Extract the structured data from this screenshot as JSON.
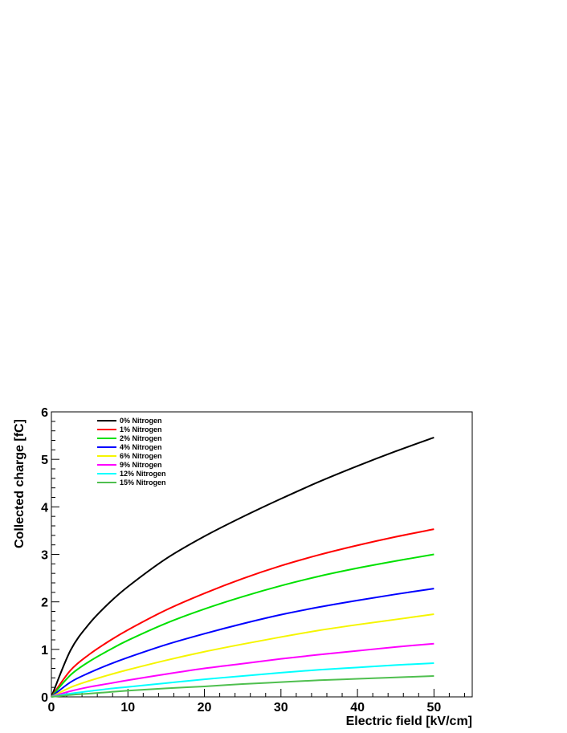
{
  "chart_data": {
    "type": "line",
    "title": "",
    "xlabel": "Electric field [kV/cm]",
    "ylabel": "Collected charge [fC]",
    "xlim": [
      0,
      55
    ],
    "ylim": [
      0,
      6
    ],
    "x_ticks": [
      0,
      10,
      20,
      30,
      40,
      50
    ],
    "y_ticks": [
      0,
      1,
      2,
      3,
      4,
      5,
      6
    ],
    "grid": false,
    "legend_position": "top-left",
    "x": [
      0,
      2.5,
      5,
      7.5,
      10,
      15,
      20,
      25,
      30,
      35,
      40,
      45,
      50
    ],
    "series": [
      {
        "name": "0% Nitrogen",
        "color": "#000000",
        "values": [
          0,
          0.98,
          1.55,
          1.97,
          2.32,
          2.91,
          3.38,
          3.79,
          4.17,
          4.53,
          4.86,
          5.17,
          5.46
        ]
      },
      {
        "name": "1% Nitrogen",
        "color": "#ff0000",
        "values": [
          0,
          0.56,
          0.9,
          1.17,
          1.41,
          1.83,
          2.18,
          2.49,
          2.76,
          2.99,
          3.19,
          3.37,
          3.53
        ]
      },
      {
        "name": "2% Nitrogen",
        "color": "#00e000",
        "values": [
          0,
          0.46,
          0.75,
          0.98,
          1.19,
          1.55,
          1.85,
          2.11,
          2.34,
          2.54,
          2.71,
          2.86,
          3.0
        ]
      },
      {
        "name": "4% Nitrogen",
        "color": "#0000ff",
        "values": [
          0,
          0.31,
          0.51,
          0.68,
          0.83,
          1.1,
          1.33,
          1.54,
          1.73,
          1.89,
          2.03,
          2.16,
          2.28
        ]
      },
      {
        "name": "6% Nitrogen",
        "color": "#f5f500",
        "values": [
          0,
          0.2,
          0.34,
          0.46,
          0.57,
          0.77,
          0.95,
          1.11,
          1.26,
          1.4,
          1.52,
          1.63,
          1.74
        ]
      },
      {
        "name": "9% Nitrogen",
        "color": "#ff00ff",
        "values": [
          0,
          0.12,
          0.21,
          0.28,
          0.35,
          0.48,
          0.6,
          0.7,
          0.8,
          0.89,
          0.97,
          1.05,
          1.12
        ]
      },
      {
        "name": "12% Nitrogen",
        "color": "#00ffff",
        "values": [
          0,
          0.07,
          0.12,
          0.17,
          0.21,
          0.29,
          0.37,
          0.44,
          0.51,
          0.57,
          0.62,
          0.67,
          0.71
        ]
      },
      {
        "name": "15% Nitrogen",
        "color": "#4fbf4f",
        "values": [
          0,
          0.04,
          0.07,
          0.1,
          0.13,
          0.18,
          0.22,
          0.27,
          0.31,
          0.35,
          0.38,
          0.41,
          0.44
        ]
      }
    ]
  }
}
